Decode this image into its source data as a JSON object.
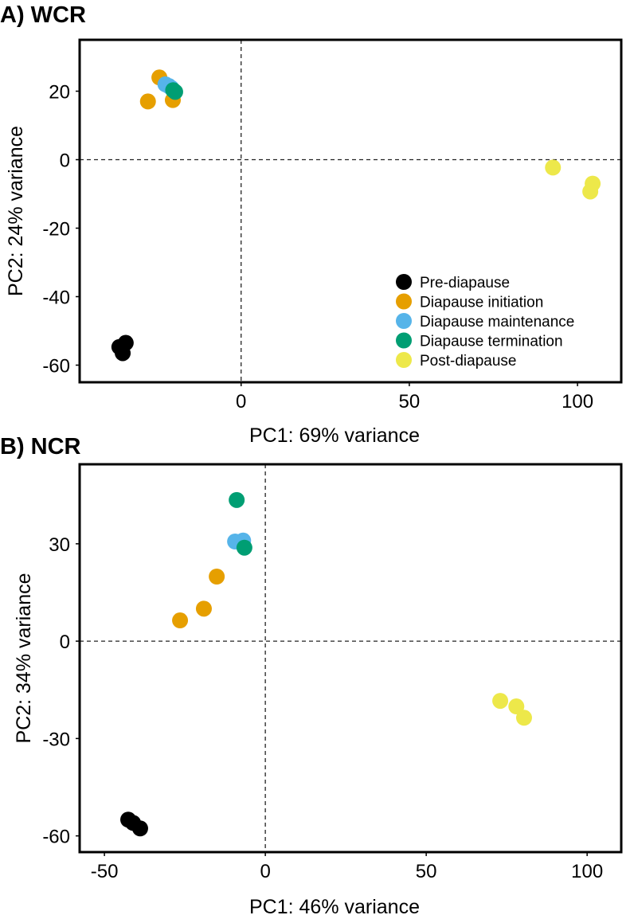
{
  "colors": {
    "Pre-diapause": "#000000",
    "Diapause initiation": "#E69F00",
    "Diapause maintenance": "#56B4E9",
    "Diapause termination": "#009E73",
    "Post-diapause": "#EDE84A"
  },
  "legend": [
    "Pre-diapause",
    "Diapause initiation",
    "Diapause maintenance",
    "Diapause termination",
    "Post-diapause"
  ],
  "chart_data": [
    {
      "type": "scatter",
      "title": "A) WCR",
      "xlabel": "PC1: 69% variance",
      "ylabel": "PC2: 24% variance",
      "xlim": [
        -48,
        113
      ],
      "ylim": [
        -65,
        35
      ],
      "xticks": [
        0,
        50,
        100
      ],
      "yticks": [
        20,
        0,
        -20,
        -40,
        -60
      ],
      "reference_lines": {
        "x": 0,
        "y": 0
      },
      "grid": false,
      "legend_position": "bottom-right",
      "series": [
        {
          "name": "Pre-diapause",
          "points": [
            [
              -34.3,
              -53.5
            ],
            [
              -36.2,
              -54.7
            ],
            [
              -35.2,
              -56.5
            ]
          ]
        },
        {
          "name": "Diapause initiation",
          "points": [
            [
              -24.3,
              24
            ],
            [
              -27.7,
              17
            ],
            [
              -20.3,
              17.4
            ]
          ]
        },
        {
          "name": "Diapause maintenance",
          "points": [
            [
              -22.5,
              22
            ],
            [
              -20.8,
              21
            ],
            [
              -21.5,
              21.5
            ]
          ]
        },
        {
          "name": "Diapause termination",
          "points": [
            [
              -19.6,
              19.8
            ],
            [
              -20.2,
              20.3
            ]
          ]
        },
        {
          "name": "Post-diapause",
          "points": [
            [
              92.7,
              -2.3
            ],
            [
              104.5,
              -7
            ],
            [
              103.8,
              -9.3
            ]
          ]
        }
      ]
    },
    {
      "type": "scatter",
      "title": "B) NCR",
      "xlabel": "PC1: 46% variance",
      "ylabel": "PC2: 34% variance",
      "xlim": [
        -57.7,
        110.6
      ],
      "ylim": [
        -65,
        54.5
      ],
      "xticks": [
        -50,
        0,
        50,
        100
      ],
      "yticks": [
        30,
        0,
        -30,
        -60
      ],
      "reference_lines": {
        "x": 0,
        "y": 0
      },
      "grid": false,
      "series": [
        {
          "name": "Pre-diapause",
          "points": [
            [
              -42.6,
              -55
            ],
            [
              -41.1,
              -56
            ],
            [
              -38.9,
              -57.7
            ]
          ]
        },
        {
          "name": "Diapause initiation",
          "points": [
            [
              -15.1,
              19.9
            ],
            [
              -19.1,
              10
            ],
            [
              -26.5,
              6.4
            ]
          ]
        },
        {
          "name": "Diapause maintenance",
          "points": [
            [
              -9.4,
              30.7
            ],
            [
              -6.9,
              31
            ]
          ]
        },
        {
          "name": "Diapause termination",
          "points": [
            [
              -8.9,
              43.5
            ],
            [
              -6.5,
              28.8
            ]
          ]
        },
        {
          "name": "Post-diapause",
          "points": [
            [
              73,
              -18.4
            ],
            [
              78,
              -20.1
            ],
            [
              80.4,
              -23.6
            ]
          ]
        }
      ]
    }
  ]
}
